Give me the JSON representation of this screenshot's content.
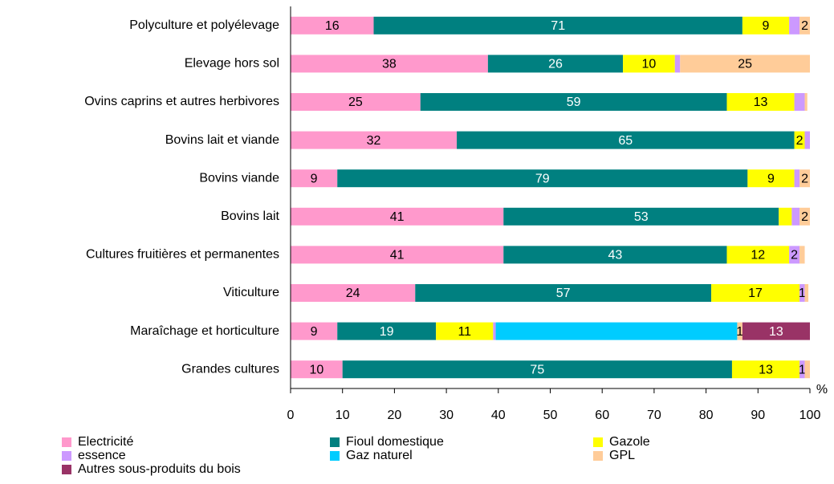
{
  "chart_data": {
    "type": "stacked_barh",
    "categories": [
      "Polyculture et polyélevage",
      "Elevage hors sol",
      "Ovins caprins et autres herbivores",
      "Bovins lait et viande",
      "Bovins viande",
      "Bovins lait",
      "Cultures fruitières et permanentes",
      "Viticulture",
      "Maraîchage et horticulture",
      "Grandes cultures"
    ],
    "series": [
      {
        "name": "Electricité",
        "color": "#ff99cc",
        "label_color": "#000000",
        "values": [
          16,
          38,
          25,
          32,
          9,
          41,
          41,
          24,
          9,
          10
        ],
        "value_labels": [
          "16",
          "38",
          "25",
          "32",
          "9",
          "41",
          "41",
          "24",
          "9",
          "10"
        ]
      },
      {
        "name": "Fioul domestique",
        "color": "#008080",
        "label_color": "#ffffff",
        "values": [
          71,
          26,
          59,
          65,
          79,
          53,
          43,
          57,
          19,
          75
        ],
        "value_labels": [
          "71",
          "26",
          "59",
          "65",
          "79",
          "53",
          "43",
          "57",
          "19",
          "75"
        ]
      },
      {
        "name": "Gazole",
        "color": "#ffff00",
        "label_color": "#000000",
        "values": [
          9,
          10,
          13,
          2,
          9,
          2.5,
          12,
          17,
          11,
          13
        ],
        "value_labels": [
          "9",
          "10",
          "13",
          "2",
          "9",
          null,
          "12",
          "17",
          "11",
          "13"
        ]
      },
      {
        "name": "essence",
        "color": "#cc99ff",
        "label_color": "#000000",
        "values": [
          2,
          1,
          2,
          1,
          1,
          1.5,
          2,
          1,
          0.5,
          1
        ],
        "value_labels": [
          null,
          null,
          null,
          null,
          null,
          null,
          "2",
          "1",
          null,
          "1"
        ]
      },
      {
        "name": "Gaz naturel",
        "color": "#00ccff",
        "label_color": "#000000",
        "values": [
          0,
          0,
          0,
          0,
          0,
          0,
          0,
          0,
          46.5,
          0
        ],
        "value_labels": [
          null,
          null,
          null,
          null,
          null,
          null,
          null,
          null,
          null,
          null
        ]
      },
      {
        "name": "GPL",
        "color": "#ffcc99",
        "label_color": "#000000",
        "values": [
          2,
          25,
          0.5,
          0,
          2,
          2,
          1,
          0.7,
          1,
          1
        ],
        "value_labels": [
          "2",
          "25",
          null,
          null,
          "2",
          "2",
          null,
          null,
          "1",
          null
        ]
      },
      {
        "name": "Autres sous-produits du bois",
        "color": "#993366",
        "label_color": "#ffffff",
        "values": [
          0,
          0,
          0,
          0,
          0,
          0,
          0,
          0,
          13,
          0
        ],
        "value_labels": [
          null,
          null,
          null,
          null,
          null,
          null,
          null,
          null,
          "13",
          null
        ]
      }
    ],
    "x_label": "%",
    "xlim": [
      0,
      100
    ],
    "xticks": [
      0,
      10,
      20,
      30,
      40,
      50,
      60,
      70,
      80,
      90,
      100
    ]
  }
}
